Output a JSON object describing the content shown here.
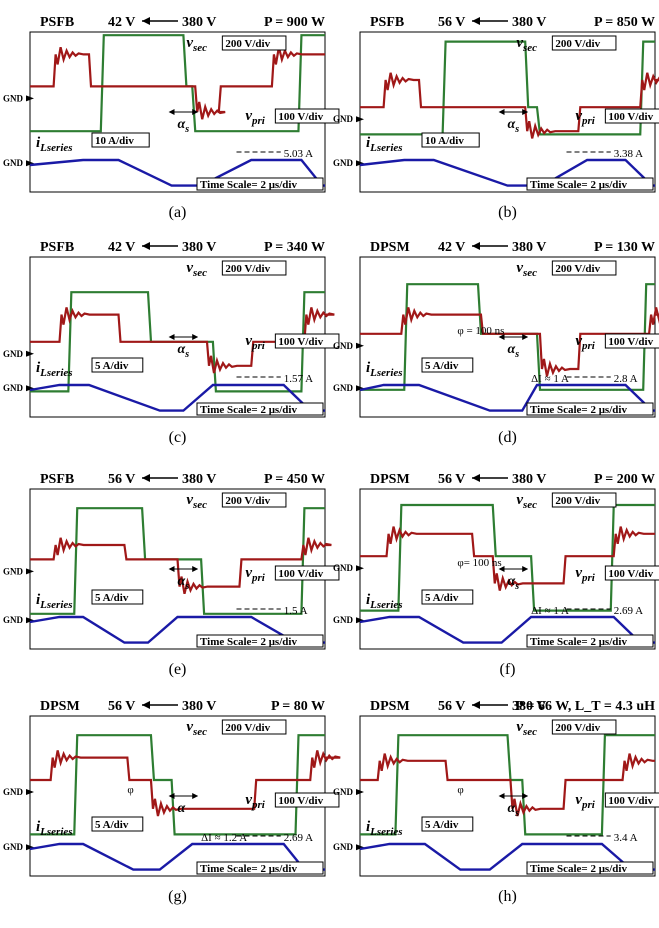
{
  "panels": [
    {
      "id": "a",
      "caption": "(a)",
      "mode": "PSFB",
      "v_out": "42 V",
      "v_in": "380 V",
      "power": "P = 900 W",
      "v_sec_label": "v_sec",
      "v_sec_scale": "200 V/div",
      "v_pri_label": "v_pri",
      "v_pri_scale": "100 V/div",
      "i_label": "i_Lseries",
      "i_scale": "10 A/div",
      "i_peak": "5.03 A",
      "alpha_label": "α_s",
      "phi_label": "",
      "delta_i": "",
      "time_scale": "Time Scale= 2 μs/div"
    },
    {
      "id": "b",
      "caption": "(b)",
      "mode": "PSFB",
      "v_out": "56 V",
      "v_in": "380 V",
      "power": "P = 850 W",
      "v_sec_label": "v_sec",
      "v_sec_scale": "200 V/div",
      "v_pri_label": "v_pri",
      "v_pri_scale": "100 V/div",
      "i_label": "i_Lseries",
      "i_scale": "10 A/div",
      "i_peak": "3.38 A",
      "alpha_label": "α_s",
      "phi_label": "",
      "delta_i": "",
      "time_scale": "Time Scale= 2 μs/div"
    },
    {
      "id": "c",
      "caption": "(c)",
      "mode": "PSFB",
      "v_out": "42 V",
      "v_in": "380 V",
      "power": "P = 340 W",
      "v_sec_label": "v_sec",
      "v_sec_scale": "200 V/div",
      "v_pri_label": "v_pri",
      "v_pri_scale": "100 V/div",
      "i_label": "i_Lseries",
      "i_scale": "5 A/div",
      "i_peak": "1.57 A",
      "alpha_label": "α_s",
      "phi_label": "",
      "delta_i": "",
      "time_scale": "Time Scale= 2 μs/div"
    },
    {
      "id": "d",
      "caption": "(d)",
      "mode": "DPSM",
      "v_out": "42 V",
      "v_in": "380 V",
      "power": "P = 130 W",
      "v_sec_label": "v_sec",
      "v_sec_scale": "200 V/div",
      "v_pri_label": "v_pri",
      "v_pri_scale": "100 V/div",
      "i_label": "i_Lseries",
      "i_scale": "5 A/div",
      "i_peak": "2.8 A",
      "alpha_label": "α_s",
      "phi_label": "φ = 100 ns",
      "delta_i": "ΔI ≈ 1 A",
      "time_scale": "Time Scale= 2 μs/div"
    },
    {
      "id": "e",
      "caption": "(e)",
      "mode": "PSFB",
      "v_out": "56 V",
      "v_in": "380 V",
      "power": "P = 450 W",
      "v_sec_label": "v_sec",
      "v_sec_scale": "200 V/div",
      "v_pri_label": "v_pri",
      "v_pri_scale": "100 V/div",
      "i_label": "i_Lseries",
      "i_scale": "5 A/div",
      "i_peak": "1.5 A",
      "alpha_label": "α_s",
      "phi_label": "",
      "delta_i": "",
      "time_scale": "Time Scale= 2 μs/div"
    },
    {
      "id": "f",
      "caption": "(f)",
      "mode": "DPSM",
      "v_out": "56 V",
      "v_in": "380 V",
      "power": "P = 200 W",
      "v_sec_label": "v_sec",
      "v_sec_scale": "200 V/div",
      "v_pri_label": "v_pri",
      "v_pri_scale": "100 V/div",
      "i_label": "i_Lseries",
      "i_scale": "5 A/div",
      "i_peak": "2.69 A",
      "alpha_label": "α_s",
      "phi_label": "φ= 100 ns",
      "delta_i": "ΔI ≈ 1 A",
      "time_scale": "Time Scale= 2 μs/div"
    },
    {
      "id": "g",
      "caption": "(g)",
      "mode": "DPSM",
      "v_out": "56 V",
      "v_in": "380 V",
      "power": "P = 80 W",
      "v_sec_label": "v_sec",
      "v_sec_scale": "200 V/div",
      "v_pri_label": "v_pri",
      "v_pri_scale": "100 V/div",
      "i_label": "i_Lseries",
      "i_scale": "5 A/div",
      "i_peak": "2.69 A",
      "alpha_label": "α",
      "phi_label": "φ",
      "delta_i": "ΔI ≈ 1.2 A",
      "time_scale": "Time Scale= 2 μs/div"
    },
    {
      "id": "h",
      "caption": "(h)",
      "mode": "DPSM",
      "v_out": "56 V",
      "v_in": "380 V",
      "power": "P = 66 W, L_T = 4.3 uH",
      "v_sec_label": "v_sec",
      "v_sec_scale": "200 V/div",
      "v_pri_label": "v_pri",
      "v_pri_scale": "100 V/div",
      "i_label": "i_Lseries",
      "i_scale": "5 A/div",
      "i_peak": "3.4 A",
      "alpha_label": "α_s",
      "phi_label": "φ",
      "delta_i": "",
      "time_scale": "Time Scale= 2 μs/div"
    }
  ],
  "gnd_label": "GND",
  "colors": {
    "v_sec": "#2e7d32",
    "v_pri": "#a01818",
    "i_series": "#1a1aa6",
    "arrow": "#000000",
    "marker": "#e03030"
  },
  "chart_data": [
    {
      "type": "line",
      "panel": "a",
      "series": [
        {
          "name": "v_sec"
        },
        {
          "name": "v_pri"
        },
        {
          "name": "i_Lseries"
        }
      ],
      "annotations": [
        "5.03 A"
      ]
    },
    {
      "type": "line",
      "panel": "b",
      "series": [
        {
          "name": "v_sec"
        },
        {
          "name": "v_pri"
        },
        {
          "name": "i_Lseries"
        }
      ],
      "annotations": [
        "3.38 A"
      ]
    },
    {
      "type": "line",
      "panel": "c",
      "series": [
        {
          "name": "v_sec"
        },
        {
          "name": "v_pri"
        },
        {
          "name": "i_Lseries"
        }
      ],
      "annotations": [
        "1.57 A"
      ]
    },
    {
      "type": "line",
      "panel": "d",
      "series": [
        {
          "name": "v_sec"
        },
        {
          "name": "v_pri"
        },
        {
          "name": "i_Lseries"
        }
      ],
      "annotations": [
        "2.8 A",
        "ΔI ≈ 1 A",
        "φ = 100 ns"
      ]
    },
    {
      "type": "line",
      "panel": "e",
      "series": [
        {
          "name": "v_sec"
        },
        {
          "name": "v_pri"
        },
        {
          "name": "i_Lseries"
        }
      ],
      "annotations": [
        "1.5 A"
      ]
    },
    {
      "type": "line",
      "panel": "f",
      "series": [
        {
          "name": "v_sec"
        },
        {
          "name": "v_pri"
        },
        {
          "name": "i_Lseries"
        }
      ],
      "annotations": [
        "2.69 A",
        "ΔI ≈ 1 A",
        "φ= 100 ns"
      ]
    },
    {
      "type": "line",
      "panel": "g",
      "series": [
        {
          "name": "v_sec"
        },
        {
          "name": "v_pri"
        },
        {
          "name": "i_Lseries"
        }
      ],
      "annotations": [
        "2.69 A",
        "ΔI ≈ 1.2 A"
      ]
    },
    {
      "type": "line",
      "panel": "h",
      "series": [
        {
          "name": "v_sec"
        },
        {
          "name": "v_pri"
        },
        {
          "name": "i_Lseries"
        }
      ],
      "annotations": [
        "3.4 A"
      ]
    }
  ]
}
